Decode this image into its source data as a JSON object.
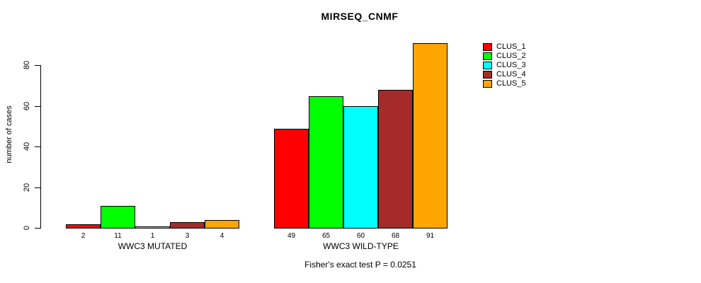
{
  "title": "MIRSEQ_CNMF",
  "caption": "Fisher's exact test P = 0.0251",
  "ylabel": "number of cases",
  "chart_data": {
    "type": "bar",
    "title": "MIRSEQ_CNMF",
    "xlabel": "",
    "ylabel": "number of cases",
    "yticks": [
      0,
      20,
      40,
      60,
      80
    ],
    "ylim": [
      0,
      92
    ],
    "grid": false,
    "legend_position": "right",
    "groups": [
      {
        "label": "WWC3 MUTATED",
        "values": [
          2,
          11,
          1,
          3,
          4
        ]
      },
      {
        "label": "WWC3 WILD-TYPE",
        "values": [
          49,
          65,
          60,
          68,
          91
        ]
      }
    ],
    "series": [
      {
        "name": "CLUS_1",
        "color": "#FF0000",
        "values": [
          2,
          49
        ]
      },
      {
        "name": "CLUS_2",
        "color": "#00FF00",
        "values": [
          11,
          65
        ]
      },
      {
        "name": "CLUS_3",
        "color": "#00FFFF",
        "values": [
          1,
          60
        ]
      },
      {
        "name": "CLUS_4",
        "color": "#A52A2A",
        "values": [
          3,
          68
        ]
      },
      {
        "name": "CLUS_5",
        "color": "#FFA500",
        "values": [
          4,
          91
        ]
      }
    ],
    "annotation": "Fisher's exact test P = 0.0251"
  }
}
